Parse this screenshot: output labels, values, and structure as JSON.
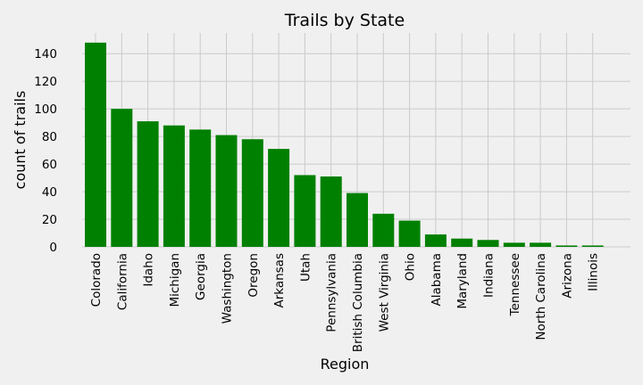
{
  "chart_data": {
    "type": "bar",
    "title": "Trails by State",
    "xlabel": "Region",
    "ylabel": "count of trails",
    "categories": [
      "Colorado",
      "California",
      "Idaho",
      "Michigan",
      "Georgia",
      "Washington",
      "Oregon",
      "Arkansas",
      "Utah",
      "Pennsylvania",
      "British Columbia",
      "West Virginia",
      "Ohio",
      "Alabama",
      "Maryland",
      "Indiana",
      "Tennessee",
      "North Carolina",
      "Arizona",
      "Illinois"
    ],
    "values": [
      148,
      100,
      91,
      88,
      85,
      81,
      78,
      71,
      52,
      51,
      39,
      24,
      19,
      9,
      6,
      5,
      3,
      3,
      1,
      1
    ],
    "ylim": [
      0,
      155
    ],
    "yticks": [
      0,
      20,
      40,
      60,
      80,
      100,
      120,
      140
    ],
    "grid": true,
    "bar_color": "#008000",
    "background_color": "#f0f0f0",
    "grid_color": "#cbcbcb"
  }
}
